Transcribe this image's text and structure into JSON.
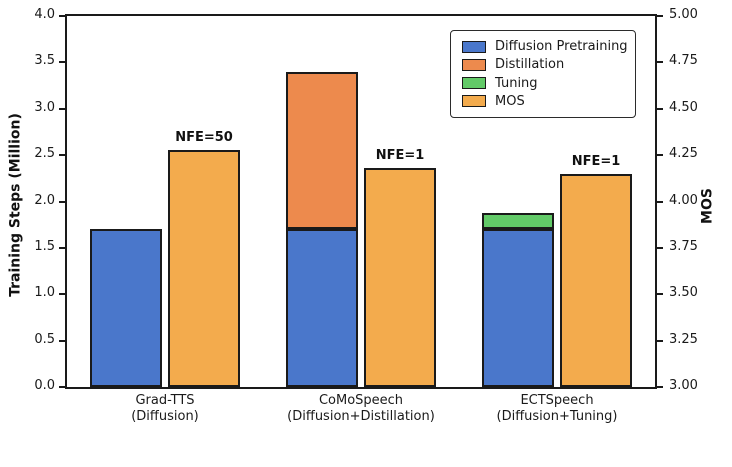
{
  "chart_data": {
    "type": "bar",
    "title": "",
    "layout": {
      "grid": false,
      "legend_position": "upper-right-inside",
      "dual_axis": true
    },
    "left_axis": {
      "label": "Training Steps (Million)",
      "min": 0,
      "max": 4,
      "ticks": [
        "0.0",
        "0.5",
        "1.0",
        "1.5",
        "2.0",
        "2.5",
        "3.0",
        "3.5",
        "4.0"
      ]
    },
    "right_axis": {
      "label": "MOS",
      "min": 3,
      "max": 5,
      "ticks": [
        "3.00",
        "3.25",
        "3.50",
        "3.75",
        "4.00",
        "4.25",
        "4.50",
        "4.75",
        "5.00"
      ]
    },
    "legend": {
      "entries": [
        {
          "label": "Diffusion Pretraining",
          "color": "#4a77cb"
        },
        {
          "label": "Distillation",
          "color": "#ed8a4d"
        },
        {
          "label": "Tuning",
          "color": "#62ca68"
        },
        {
          "label": "MOS",
          "color": "#f3ab4d"
        }
      ]
    },
    "edge_color": "#1a1a1a",
    "groups": [
      {
        "label_line1": "Grad-TTS",
        "label_line2": "(Diffusion)",
        "annotation": "NFE=50",
        "training_segments": [
          {
            "series": "Diffusion Pretraining",
            "value": 1.7
          }
        ],
        "training_total": 1.7,
        "mos": 4.28
      },
      {
        "label_line1": "CoMoSpeech",
        "label_line2": "(Diffusion+Distillation)",
        "annotation": "NFE=1",
        "training_segments": [
          {
            "series": "Diffusion Pretraining",
            "value": 1.7
          },
          {
            "series": "Distillation",
            "value": 1.7
          }
        ],
        "training_total": 3.4,
        "mos": 4.18
      },
      {
        "label_line1": "ECTSpeech",
        "label_line2": "(Diffusion+Tuning)",
        "annotation": "NFE=1",
        "training_segments": [
          {
            "series": "Diffusion Pretraining",
            "value": 1.7
          },
          {
            "series": "Tuning",
            "value": 0.18
          }
        ],
        "training_total": 1.88,
        "mos": 4.15
      }
    ]
  }
}
